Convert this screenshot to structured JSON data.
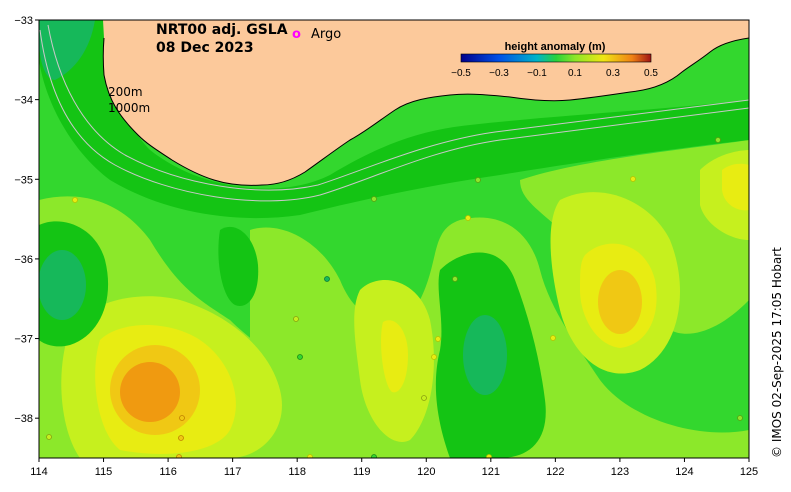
{
  "map": {
    "title_line1": "NRT00 adj. GSLA",
    "title_line2": "08 Dec 2023",
    "legend_argo_symbol": "o",
    "legend_argo_label": "Argo",
    "contour_label_200": "200m",
    "contour_label_1000": "1000m",
    "credit": "© IMOS 02-Sep-2025 17:05 Hobart",
    "x_ticks": [
      "114",
      "115",
      "116",
      "117",
      "118",
      "119",
      "120",
      "121",
      "122",
      "123",
      "124",
      "125"
    ],
    "y_ticks": [
      "−33",
      "−34",
      "−35",
      "−36",
      "−37",
      "−38"
    ],
    "lon_range": [
      114,
      125
    ],
    "lat_range": [
      -38.5,
      -33
    ]
  },
  "colorbar": {
    "title": "height anomaly (m)",
    "labels": [
      "−0.5",
      "−0.3",
      "−0.1",
      "0.1",
      "0.3",
      "0.5"
    ],
    "range": [
      -0.5,
      0.5
    ]
  },
  "colors": {
    "land": "#fcc99b",
    "argo": "#ff00ff",
    "base_ocean": "#33d72e",
    "dark_green": "#14c414",
    "teal": "#16b85a",
    "light_green": "#8ce82a",
    "yellow_green": "#c6f01e",
    "yellow": "#e8ec12",
    "gold": "#f0c814",
    "orange": "#f09a10",
    "contour_line": "#c8c8c8"
  }
}
